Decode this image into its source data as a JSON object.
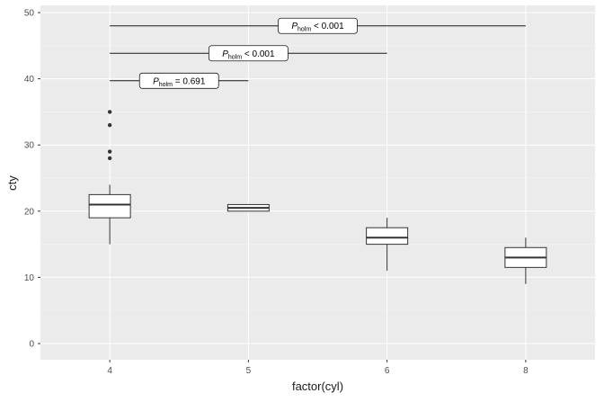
{
  "chart_data": {
    "type": "boxplot",
    "title": "",
    "xlabel": "factor(cyl)",
    "ylabel": "cty",
    "ylim": [
      0,
      50
    ],
    "y_major_ticks": [
      0,
      10,
      20,
      30,
      40,
      50
    ],
    "y_minor_ticks": [
      5,
      15,
      25,
      35,
      45
    ],
    "categories": [
      "4",
      "5",
      "6",
      "8"
    ],
    "boxes": [
      {
        "category": "4",
        "whisker_low": 15,
        "q1": 19,
        "median": 21,
        "q3": 22.5,
        "whisker_high": 24,
        "outliers": [
          28,
          29,
          33,
          35
        ]
      },
      {
        "category": "5",
        "whisker_low": 20,
        "q1": 20,
        "median": 20.5,
        "q3": 21,
        "whisker_high": 21,
        "outliers": []
      },
      {
        "category": "6",
        "whisker_low": 11,
        "q1": 15,
        "median": 16,
        "q3": 17.5,
        "whisker_high": 19,
        "outliers": []
      },
      {
        "category": "8",
        "whisker_low": 9,
        "q1": 11.5,
        "median": 13,
        "q3": 14.5,
        "whisker_high": 16,
        "outliers": []
      }
    ],
    "comparisons": [
      {
        "from": "4",
        "to": "8",
        "y": 48,
        "label_prefix": "P",
        "label_sub": "holm",
        "label_rest": " < 0.001"
      },
      {
        "from": "4",
        "to": "6",
        "y": 43.85,
        "label_prefix": "P",
        "label_sub": "holm",
        "label_rest": " < 0.001"
      },
      {
        "from": "4",
        "to": "5",
        "y": 39.7,
        "label_prefix": "P",
        "label_sub": "holm",
        "label_rest": " = 0.691"
      }
    ],
    "legend": "none",
    "grid": "on",
    "colors": {
      "panel_bg": "#EBEBEB",
      "grid_major": "#FFFFFF",
      "grid_minor": "#F7F7F7",
      "axis_text": "#4D4D4D",
      "axis_title": "#1A1A1A",
      "box_stroke": "#333333",
      "box_fill": "#FFFFFF",
      "sig_line": "#1A1A1A",
      "label_box_fill": "#FFFFFF",
      "label_box_stroke": "#1A1A1A"
    }
  }
}
